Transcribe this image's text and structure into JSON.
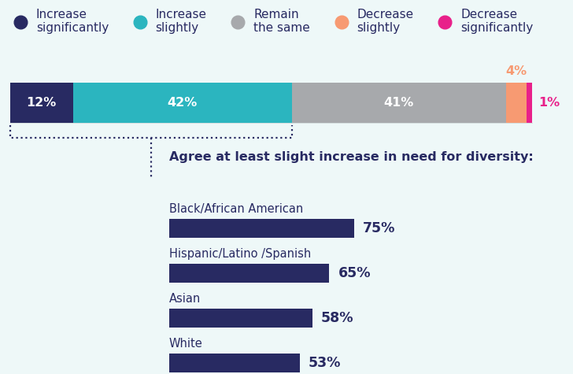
{
  "chart_data": [
    {
      "type": "bar",
      "orientation": "horizontal",
      "stacked": true,
      "data_labels": true,
      "tick_labels": false,
      "legend": "upper left",
      "categories": [
        null
      ],
      "xlim": [
        0,
        100
      ],
      "series": [
        {
          "name": "Increase significantly",
          "color": "#282a62",
          "values": [
            12
          ],
          "value_labels": [
            "12%"
          ]
        },
        {
          "name": "Increase slightly",
          "color": "#2bb5bf",
          "values": [
            42
          ],
          "value_labels": [
            "42%"
          ]
        },
        {
          "name": "Remain the same",
          "color": "#a7a9ac",
          "values": [
            41
          ],
          "value_labels": [
            "41%"
          ]
        },
        {
          "name": "Decrease slightly",
          "color": "#f79a72",
          "values": [
            4
          ],
          "value_labels": [
            "4%"
          ]
        },
        {
          "name": "Decrease significantly",
          "color": "#e8218a",
          "values": [
            1
          ],
          "value_labels": [
            "1%"
          ]
        }
      ]
    },
    {
      "type": "bar",
      "orientation": "horizontal",
      "data_labels": true,
      "tick_labels": false,
      "title": "Agree at least slight increase in need for diversity:",
      "categories": [
        "Black/African American",
        "Hispanic/Latino /Spanish",
        "Asian",
        "White"
      ],
      "values": [
        75,
        65,
        58,
        53
      ],
      "value_labels": [
        "75%",
        "65%",
        "58%",
        "53%"
      ],
      "color": "#282a62",
      "xlim": [
        0,
        100
      ]
    }
  ]
}
